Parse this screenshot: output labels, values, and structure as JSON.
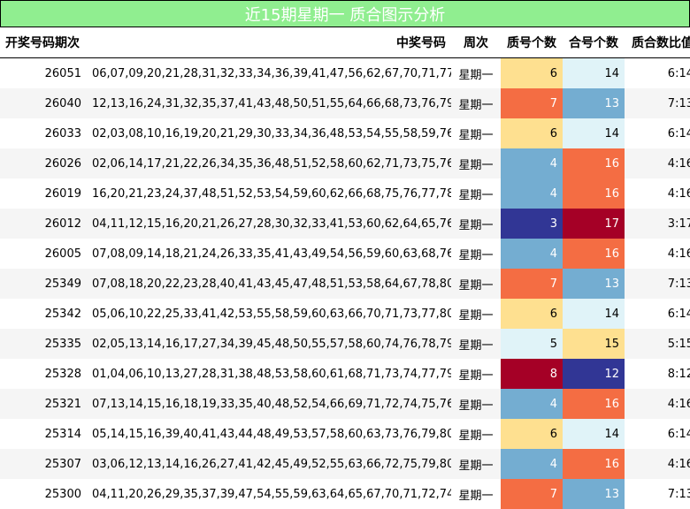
{
  "title": "近15期星期一 质合图示分析",
  "columns": {
    "issue": "开奖号码期次",
    "numbers": "中奖号码",
    "weekday": "周次",
    "prime_count": "质号个数",
    "composite_count": "合号个数",
    "ratio": "质合数比值"
  },
  "colors": {
    "title_bg": "#90ee90",
    "row_alt": "#f5f5f5",
    "heat_scale": {
      "3": "#313695",
      "4": "#74add1",
      "5": "#e0f3f8",
      "6": "#fee090",
      "7": "#f46d43",
      "8": "#a50026",
      "12": "#313695",
      "13": "#74add1",
      "14": "#e0f3f8",
      "15": "#fee090",
      "16": "#f46d43",
      "17": "#a50026"
    }
  },
  "chart_data": {
    "type": "table",
    "title": "近15期星期一 质合图示分析",
    "rows": [
      {
        "issue": "26051",
        "numbers": "06,07,09,20,21,28,31,32,33,34,36,39,41,47,56,62,67,70,71,77",
        "weekday": "星期一",
        "prime": 6,
        "composite": 14,
        "ratio": "6:14"
      },
      {
        "issue": "26040",
        "numbers": "12,13,16,24,31,32,35,37,41,43,48,50,51,55,64,66,68,73,76,79",
        "weekday": "星期一",
        "prime": 7,
        "composite": 13,
        "ratio": "7:13"
      },
      {
        "issue": "26033",
        "numbers": "02,03,08,10,16,19,20,21,29,30,33,34,36,48,53,54,55,58,59,76",
        "weekday": "星期一",
        "prime": 6,
        "composite": 14,
        "ratio": "6:14"
      },
      {
        "issue": "26026",
        "numbers": "02,06,14,17,21,22,26,34,35,36,48,51,52,58,60,62,71,73,75,76",
        "weekday": "星期一",
        "prime": 4,
        "composite": 16,
        "ratio": "4:16"
      },
      {
        "issue": "26019",
        "numbers": "16,20,21,23,24,37,48,51,52,53,54,59,60,62,66,68,75,76,77,78",
        "weekday": "星期一",
        "prime": 4,
        "composite": 16,
        "ratio": "4:16"
      },
      {
        "issue": "26012",
        "numbers": "04,11,12,15,16,20,21,26,27,28,30,32,33,41,53,60,62,64,65,76",
        "weekday": "星期一",
        "prime": 3,
        "composite": 17,
        "ratio": "3:17"
      },
      {
        "issue": "26005",
        "numbers": "07,08,09,14,18,21,24,26,33,35,41,43,49,54,56,59,60,63,68,76",
        "weekday": "星期一",
        "prime": 4,
        "composite": 16,
        "ratio": "4:16"
      },
      {
        "issue": "25349",
        "numbers": "07,08,18,20,22,23,28,40,41,43,45,47,48,51,53,58,64,67,78,80",
        "weekday": "星期一",
        "prime": 7,
        "composite": 13,
        "ratio": "7:13"
      },
      {
        "issue": "25342",
        "numbers": "05,06,10,22,25,33,41,42,53,55,58,59,60,63,66,70,71,73,77,80",
        "weekday": "星期一",
        "prime": 6,
        "composite": 14,
        "ratio": "6:14"
      },
      {
        "issue": "25335",
        "numbers": "02,05,13,14,16,17,27,34,39,45,48,50,55,57,58,60,74,76,78,79",
        "weekday": "星期一",
        "prime": 5,
        "composite": 15,
        "ratio": "5:15"
      },
      {
        "issue": "25328",
        "numbers": "01,04,06,10,13,27,28,31,38,48,53,58,60,61,68,71,73,74,77,79",
        "weekday": "星期一",
        "prime": 8,
        "composite": 12,
        "ratio": "8:12"
      },
      {
        "issue": "25321",
        "numbers": "07,13,14,15,16,18,19,33,35,40,48,52,54,66,69,71,72,74,75,76",
        "weekday": "星期一",
        "prime": 4,
        "composite": 16,
        "ratio": "4:16"
      },
      {
        "issue": "25314",
        "numbers": "05,14,15,16,39,40,41,43,44,48,49,53,57,58,60,63,73,76,79,80",
        "weekday": "星期一",
        "prime": 6,
        "composite": 14,
        "ratio": "6:14"
      },
      {
        "issue": "25307",
        "numbers": "03,06,12,13,14,16,26,27,41,42,45,49,52,55,63,66,72,75,79,80",
        "weekday": "星期一",
        "prime": 4,
        "composite": 16,
        "ratio": "4:16"
      },
      {
        "issue": "25300",
        "numbers": "04,11,20,26,29,35,37,39,47,54,55,59,63,64,65,67,70,71,72,74",
        "weekday": "星期一",
        "prime": 7,
        "composite": 13,
        "ratio": "7:13"
      }
    ]
  }
}
